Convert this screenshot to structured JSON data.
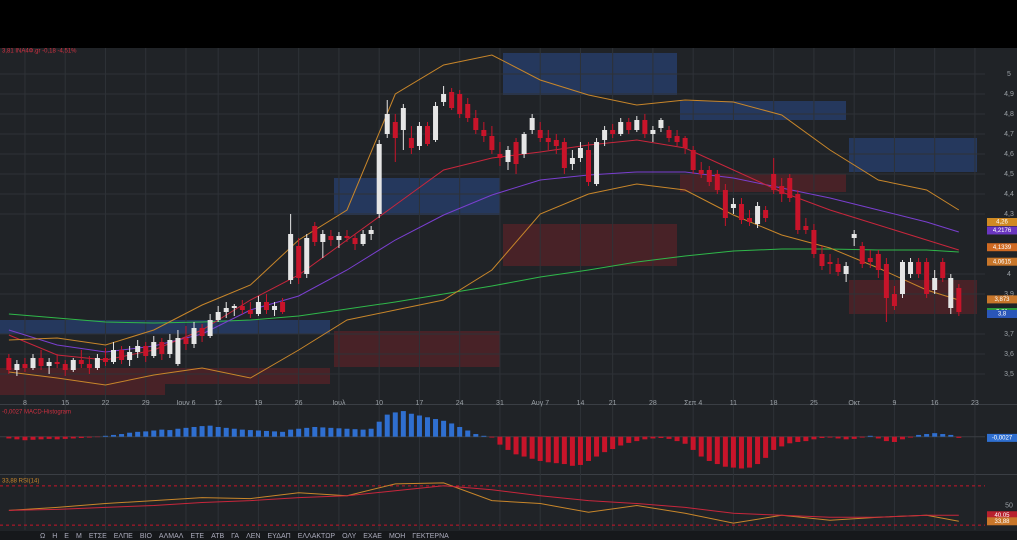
{
  "header": {
    "legend": "3,81 INA4Φ.gr -0,18 -4,51%"
  },
  "toolbar": {
    "items": [
      "Ω",
      "Η",
      "Ε",
      "Μ",
      "ΕΤΣΕ",
      "ΕΛΠΕ",
      "ΒΙΟ",
      "ΑΛΜΑΛ",
      "ΕΤΕ",
      "ΑΤΒ",
      "ΓΑ",
      "ΛΕΝ",
      "ΕΥΔΑΠ",
      "ΕΛΛΑΚΤΩΡ",
      "ΟΛΥ",
      "ΕΧΑΕ",
      "ΜΟΗ",
      "ΓΕΚΤΕΡΝΑ"
    ]
  },
  "chart_data": [
    {
      "type": "candlestick",
      "xlim": [
        -1.1,
        121.25
      ],
      "ylim": [
        3.395,
        5.13
      ],
      "grid": true,
      "up_color": "#e6e6e6",
      "down_color": "#c8142a",
      "yticks": [
        5,
        {
          "value": 4.9,
          "label": "4,9"
        },
        {
          "value": 4.8,
          "label": "4,8"
        },
        {
          "value": 4.7,
          "label": "4,7"
        },
        {
          "value": 4.6,
          "label": "4,6"
        },
        {
          "value": 4.5,
          "label": "4,5"
        },
        {
          "value": 4.4,
          "label": "4,4"
        },
        {
          "value": 4.3,
          "label": "4,3"
        },
        4,
        {
          "value": 3.9,
          "label": "3,9"
        },
        {
          "value": 3.7,
          "label": "3,7"
        },
        {
          "value": 3.6,
          "label": "3,6"
        },
        {
          "value": 3.5,
          "label": "3,5"
        }
      ],
      "xticks": [
        {
          "value": 2,
          "label": "8"
        },
        {
          "value": 7,
          "label": "15"
        },
        {
          "value": 12,
          "label": "22"
        },
        {
          "value": 17,
          "label": "29"
        },
        {
          "value": 22,
          "label": "Ιουν 6"
        },
        {
          "value": 26,
          "label": "12"
        },
        {
          "value": 31,
          "label": "19"
        },
        {
          "value": 36,
          "label": "26"
        },
        {
          "value": 41,
          "label": "Ιουλ"
        },
        {
          "value": 46,
          "label": "10"
        },
        {
          "value": 51,
          "label": "17"
        },
        {
          "value": 56,
          "label": "24"
        },
        {
          "value": 61,
          "label": "31"
        },
        {
          "value": 66,
          "label": "Αυγ 7"
        },
        {
          "value": 71,
          "label": "14"
        },
        {
          "value": 75,
          "label": "21"
        },
        {
          "value": 80,
          "label": "28"
        },
        {
          "value": 85,
          "label": "Σεπ 4"
        },
        {
          "value": 90,
          "label": "11"
        },
        {
          "value": 95,
          "label": "18"
        },
        {
          "value": 100,
          "label": "25"
        },
        {
          "value": 105,
          "label": "Οκτ"
        },
        {
          "value": 110,
          "label": "9"
        },
        {
          "value": 115,
          "label": "16"
        },
        {
          "value": 120,
          "label": "23"
        }
      ],
      "open": [
        3.58,
        3.52,
        3.55,
        3.53,
        3.58,
        3.54,
        3.56,
        3.55,
        3.52,
        3.57,
        3.55,
        3.53,
        3.58,
        3.56,
        3.62,
        3.57,
        3.61,
        3.64,
        3.59,
        3.66,
        3.6,
        3.55,
        3.68,
        3.65,
        3.73,
        3.69,
        3.77,
        3.81,
        3.83,
        3.84,
        3.82,
        3.8,
        3.86,
        3.82,
        3.86,
        3.97,
        4.14,
        4.0,
        4.24,
        4.16,
        4.19,
        4.17,
        4.19,
        4.18,
        4.15,
        4.2,
        4.3,
        4.7,
        4.76,
        4.72,
        4.68,
        4.64,
        4.74,
        4.67,
        4.86,
        4.91,
        4.9,
        4.85,
        4.78,
        4.72,
        4.69,
        4.6,
        4.56,
        4.66,
        4.6,
        4.72,
        4.72,
        4.68,
        4.67,
        4.66,
        4.55,
        4.58,
        4.62,
        4.45,
        4.67,
        4.72,
        4.7,
        4.76,
        4.72,
        4.77,
        4.7,
        4.73,
        4.72,
        4.69,
        4.68,
        4.62,
        4.52,
        4.52,
        4.5,
        4.42,
        4.33,
        4.35,
        4.28,
        4.25,
        4.32,
        4.5,
        4.44,
        4.48,
        4.4,
        4.24,
        4.22,
        4.1,
        4.06,
        4.05,
        4.0,
        4.18,
        4.14,
        4.08,
        4.1,
        4.05,
        3.9,
        3.9,
        4.0,
        4.06,
        4.06,
        3.92,
        4.06,
        3.83,
        3.93
      ],
      "high": [
        3.6,
        3.57,
        3.58,
        3.6,
        3.62,
        3.58,
        3.6,
        3.57,
        3.58,
        3.62,
        3.59,
        3.6,
        3.63,
        3.66,
        3.64,
        3.64,
        3.67,
        3.66,
        3.69,
        3.68,
        3.7,
        3.72,
        3.74,
        3.76,
        3.75,
        3.8,
        3.84,
        3.86,
        3.85,
        3.87,
        3.86,
        3.89,
        3.9,
        3.86,
        3.88,
        4.3,
        4.18,
        4.2,
        4.26,
        4.22,
        4.22,
        4.21,
        4.22,
        4.2,
        4.22,
        4.24,
        4.67,
        4.87,
        4.8,
        4.85,
        4.74,
        4.76,
        4.76,
        4.86,
        4.94,
        4.93,
        4.92,
        4.88,
        4.82,
        4.76,
        4.74,
        4.66,
        4.64,
        4.68,
        4.71,
        4.8,
        4.76,
        4.72,
        4.7,
        4.68,
        4.62,
        4.66,
        4.66,
        4.68,
        4.74,
        4.75,
        4.78,
        4.78,
        4.79,
        4.8,
        4.74,
        4.78,
        4.74,
        4.72,
        4.69,
        4.64,
        4.56,
        4.54,
        4.52,
        4.45,
        4.38,
        4.38,
        4.32,
        4.36,
        4.34,
        4.58,
        4.48,
        4.5,
        4.42,
        4.28,
        4.25,
        4.14,
        4.1,
        4.08,
        4.06,
        4.22,
        4.16,
        4.12,
        4.12,
        4.08,
        3.94,
        4.07,
        4.08,
        4.08,
        4.08,
        4.02,
        4.08,
        4.0,
        3.95
      ],
      "low": [
        3.5,
        3.49,
        3.51,
        3.52,
        3.52,
        3.5,
        3.53,
        3.49,
        3.51,
        3.53,
        3.5,
        3.52,
        3.54,
        3.55,
        3.55,
        3.54,
        3.58,
        3.56,
        3.58,
        3.57,
        3.58,
        3.54,
        3.62,
        3.63,
        3.66,
        3.68,
        3.76,
        3.78,
        3.79,
        3.8,
        3.78,
        3.79,
        3.8,
        3.79,
        3.8,
        3.95,
        3.95,
        3.98,
        4.14,
        4.08,
        4.14,
        4.13,
        4.16,
        4.12,
        4.14,
        4.17,
        4.28,
        4.68,
        4.56,
        4.62,
        4.6,
        4.62,
        4.64,
        4.66,
        4.84,
        4.82,
        4.78,
        4.76,
        4.7,
        4.66,
        4.6,
        4.54,
        4.52,
        4.5,
        4.58,
        4.7,
        4.66,
        4.62,
        4.6,
        4.5,
        4.52,
        4.56,
        4.44,
        4.44,
        4.64,
        4.68,
        4.69,
        4.7,
        4.71,
        4.68,
        4.66,
        4.71,
        4.66,
        4.64,
        4.6,
        4.5,
        4.48,
        4.44,
        4.4,
        4.24,
        4.3,
        4.25,
        4.24,
        4.23,
        4.26,
        4.4,
        4.36,
        4.36,
        4.2,
        4.2,
        4.08,
        4.02,
        4.0,
        3.99,
        3.96,
        4.14,
        4.03,
        4.03,
        3.98,
        3.76,
        3.82,
        3.88,
        3.98,
        3.98,
        3.88,
        3.9,
        3.96,
        3.8,
        3.79
      ],
      "close": [
        3.52,
        3.55,
        3.53,
        3.58,
        3.54,
        3.56,
        3.55,
        3.52,
        3.57,
        3.55,
        3.53,
        3.58,
        3.56,
        3.62,
        3.57,
        3.61,
        3.64,
        3.59,
        3.66,
        3.6,
        3.67,
        3.68,
        3.65,
        3.73,
        3.69,
        3.77,
        3.81,
        3.83,
        3.84,
        3.82,
        3.8,
        3.86,
        3.82,
        3.84,
        3.81,
        4.2,
        3.98,
        4.18,
        4.16,
        4.2,
        4.17,
        4.19,
        4.18,
        4.15,
        4.2,
        4.22,
        4.65,
        4.8,
        4.68,
        4.83,
        4.63,
        4.74,
        4.65,
        4.84,
        4.9,
        4.83,
        4.8,
        4.78,
        4.72,
        4.69,
        4.62,
        4.58,
        4.62,
        4.55,
        4.7,
        4.78,
        4.68,
        4.66,
        4.64,
        4.53,
        4.58,
        4.63,
        4.46,
        4.66,
        4.72,
        4.7,
        4.76,
        4.72,
        4.77,
        4.7,
        4.72,
        4.77,
        4.68,
        4.66,
        4.63,
        4.52,
        4.5,
        4.46,
        4.42,
        4.28,
        4.35,
        4.27,
        4.26,
        4.34,
        4.28,
        4.42,
        4.4,
        4.38,
        4.22,
        4.22,
        4.1,
        4.04,
        4.05,
        4.01,
        4.04,
        4.2,
        4.05,
        4.06,
        4.02,
        3.88,
        3.84,
        4.06,
        4.06,
        4.0,
        3.9,
        3.98,
        3.98,
        3.98,
        3.81
      ],
      "line_x": [
        0,
        6,
        12,
        18,
        24,
        30,
        36,
        42,
        48,
        54,
        60,
        66,
        72,
        78,
        84,
        90,
        96,
        102,
        108,
        114,
        118
      ],
      "lines": [
        {
          "color": "#2fb84a",
          "values": [
            3.8,
            3.78,
            3.76,
            3.755,
            3.76,
            3.77,
            3.79,
            3.825,
            3.86,
            3.9,
            3.94,
            3.985,
            4.02,
            4.06,
            4.09,
            4.115,
            4.125,
            4.125,
            4.12,
            4.12,
            4.11
          ]
        },
        {
          "color": "#7a3fd0",
          "values": [
            3.72,
            3.645,
            3.61,
            3.64,
            3.7,
            3.82,
            3.89,
            4.02,
            4.17,
            4.295,
            4.395,
            4.47,
            4.495,
            4.51,
            4.51,
            4.48,
            4.43,
            4.38,
            4.32,
            4.26,
            4.21
          ]
        },
        {
          "color": "#c8263c",
          "values": [
            3.695,
            3.595,
            3.57,
            3.62,
            3.72,
            3.87,
            3.995,
            4.17,
            4.345,
            4.52,
            4.58,
            4.61,
            4.645,
            4.67,
            4.63,
            4.52,
            4.41,
            4.32,
            4.245,
            4.17,
            4.12
          ]
        },
        {
          "color": "#c8862a",
          "values": [
            3.67,
            3.68,
            3.645,
            3.72,
            3.845,
            3.945,
            4.17,
            4.32,
            4.9,
            5.045,
            5.095,
            4.97,
            4.895,
            4.845,
            4.87,
            4.86,
            4.795,
            4.62,
            4.47,
            4.42,
            4.32
          ]
        },
        {
          "color": "#c8862a",
          "values": [
            3.51,
            3.48,
            3.445,
            3.495,
            3.53,
            3.48,
            3.62,
            3.77,
            3.82,
            3.87,
            4.02,
            4.3,
            4.4,
            4.45,
            4.42,
            4.295,
            4.195,
            4.13,
            4.03,
            3.92,
            3.87
          ]
        }
      ],
      "price_tags": [
        {
          "value": 4.26,
          "label": "4,26",
          "color": "#d08a22"
        },
        {
          "value": 4.2176,
          "label": "4,2176",
          "color": "#6a36c0"
        },
        {
          "value": 4.1339,
          "label": "4,1339",
          "color": "#d06a22"
        },
        {
          "value": 4.0615,
          "label": "4,0615",
          "color": "#c8762a"
        },
        {
          "value": 3.873,
          "label": "3,873",
          "color": "#c8762a"
        },
        {
          "value": 3.81,
          "label": "3,81",
          "color": "#2a9a3a"
        },
        {
          "value": 3.8,
          "label": "3,8",
          "color": "#2a56b8"
        }
      ]
    },
    {
      "type": "bar",
      "title": "-0,0027 MACD-Histogram",
      "xlim": [
        -1.1,
        121.25
      ],
      "ylim": [
        -0.08,
        0.065
      ],
      "up_color": "#2f6fd0",
      "down_color": "#c8142a",
      "values": [
        -0.004,
        -0.006,
        -0.008,
        -0.007,
        -0.006,
        -0.005,
        -0.006,
        -0.005,
        -0.004,
        -0.003,
        -0.002,
        -0.001,
        0.002,
        0.004,
        0.006,
        0.009,
        0.011,
        0.012,
        0.014,
        0.016,
        0.015,
        0.018,
        0.02,
        0.022,
        0.024,
        0.025,
        0.022,
        0.02,
        0.018,
        0.016,
        0.015,
        0.014,
        0.013,
        0.012,
        0.011,
        0.016,
        0.018,
        0.02,
        0.022,
        0.021,
        0.02,
        0.019,
        0.018,
        0.017,
        0.016,
        0.018,
        0.034,
        0.05,
        0.055,
        0.058,
        0.052,
        0.048,
        0.044,
        0.04,
        0.036,
        0.03,
        0.022,
        0.014,
        0.006,
        0.002,
        -0.002,
        -0.018,
        -0.03,
        -0.04,
        -0.045,
        -0.05,
        -0.055,
        -0.058,
        -0.06,
        -0.062,
        -0.066,
        -0.064,
        -0.055,
        -0.045,
        -0.035,
        -0.028,
        -0.02,
        -0.014,
        -0.01,
        -0.006,
        -0.004,
        -0.003,
        -0.005,
        -0.01,
        -0.016,
        -0.03,
        -0.045,
        -0.055,
        -0.062,
        -0.068,
        -0.07,
        -0.072,
        -0.07,
        -0.062,
        -0.048,
        -0.03,
        -0.022,
        -0.015,
        -0.012,
        -0.01,
        -0.006,
        -0.003,
        -0.002,
        -0.004,
        -0.006,
        -0.005,
        -0.002,
        0.002,
        -0.004,
        -0.01,
        -0.012,
        -0.006,
        -0.002,
        0.004,
        0.006,
        0.008,
        0.006,
        0.004,
        -0.0027
      ],
      "tag": {
        "value": -0.0027,
        "label": "-0,0027",
        "color": "#2f6fd0"
      }
    },
    {
      "type": "line",
      "title": "33,88 RSI(14)",
      "xlim": [
        -1.1,
        121.25
      ],
      "ylim": [
        25,
        78
      ],
      "yticks": [
        50
      ],
      "levels": [
        70,
        30
      ],
      "level_color": "#c8142a",
      "x": [
        0,
        6,
        12,
        18,
        24,
        30,
        36,
        42,
        48,
        54,
        60,
        66,
        72,
        78,
        84,
        90,
        96,
        102,
        108,
        114,
        118
      ],
      "series": [
        {
          "color": "#c8862a",
          "values": [
            45,
            48,
            52,
            55,
            58,
            57,
            63,
            60,
            72,
            73,
            55,
            52,
            43,
            50,
            42,
            32,
            40,
            35,
            38,
            40,
            33.88
          ]
        },
        {
          "color": "#c8263c",
          "values": [
            45,
            46,
            48,
            50,
            53,
            55,
            58,
            60,
            65,
            70,
            66,
            60,
            55,
            52,
            48,
            42,
            40,
            38,
            38,
            40,
            40.05
          ]
        }
      ],
      "tags": [
        {
          "value": 40.05,
          "label": "40,05",
          "color": "#b8202e"
        },
        {
          "value": 33.88,
          "label": "33,88",
          "color": "#c8762a"
        }
      ]
    }
  ]
}
